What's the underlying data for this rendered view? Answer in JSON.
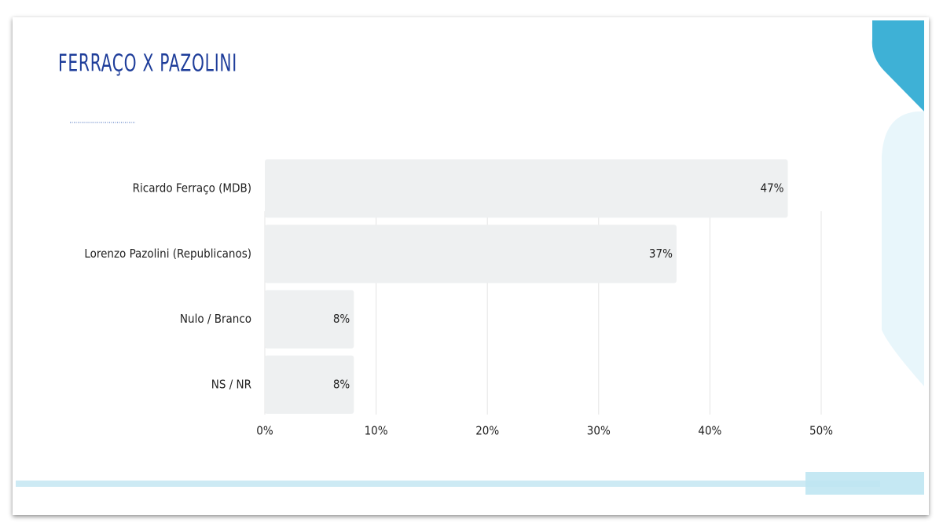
{
  "chart_data": {
    "type": "bar",
    "orientation": "horizontal",
    "title": "FERRAÇO X PAZOLINI",
    "categories": [
      "Ricardo Ferraço (MDB)",
      "Lorenzo Pazolini (Republicanos)",
      "Nulo / Branco",
      "NS / NR"
    ],
    "values": [
      47,
      37,
      8,
      8
    ],
    "value_labels": [
      "47%",
      "37%",
      "8%",
      "8%"
    ],
    "color": "#eef0f1",
    "xlim": [
      0,
      50
    ],
    "xticks": [
      {
        "value": 0,
        "label": "0%"
      },
      {
        "value": 10,
        "label": "10%"
      },
      {
        "value": 20,
        "label": "20%"
      },
      {
        "value": 30,
        "label": "30%"
      },
      {
        "value": 40,
        "label": "40%"
      },
      {
        "value": 50,
        "label": "50%"
      }
    ],
    "grid": true
  }
}
